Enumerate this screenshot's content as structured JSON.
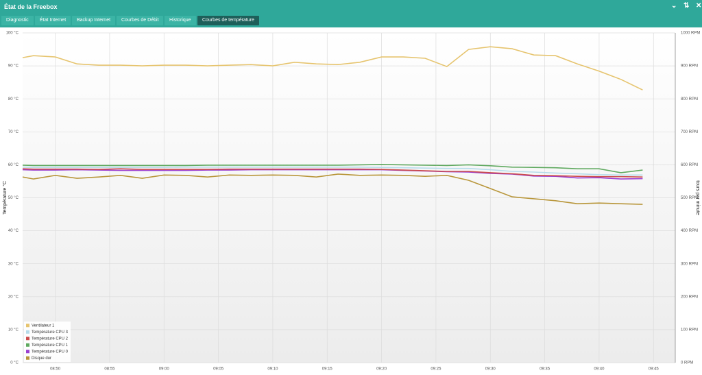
{
  "window": {
    "title": "État de la Freebox",
    "tabs": [
      "Diagnostic",
      "État Internet",
      "Backup Internet",
      "Courbes de Débit",
      "Historique",
      "Courbes de température"
    ],
    "active_tab": 5
  },
  "chart_data": {
    "type": "line",
    "y_label": "Température °C",
    "y2_label": "tours par minute",
    "x": [
      "08:47",
      "08:48",
      "08:50",
      "08:52",
      "08:54",
      "08:56",
      "08:58",
      "09:00",
      "09:02",
      "09:04",
      "09:06",
      "09:08",
      "09:10",
      "09:12",
      "09:14",
      "09:16",
      "09:18",
      "09:20",
      "09:22",
      "09:24",
      "09:26",
      "09:28",
      "09:30",
      "09:32",
      "09:34",
      "09:36",
      "09:38",
      "09:40",
      "09:42",
      "09:44"
    ],
    "xlim": [
      "08:47",
      "09:47"
    ],
    "xticks": [
      "08:50",
      "08:55",
      "09:00",
      "09:05",
      "09:10",
      "09:15",
      "09:20",
      "09:25",
      "09:30",
      "09:35",
      "09:40",
      "09:45"
    ],
    "ylim": [
      0,
      100
    ],
    "yticks": [
      {
        "value": 0,
        "label": "0 °C"
      },
      {
        "value": 10,
        "label": "10 °C"
      },
      {
        "value": 20,
        "label": "20 °C"
      },
      {
        "value": 30,
        "label": "30 °C"
      },
      {
        "value": 40,
        "label": "40 °C"
      },
      {
        "value": 50,
        "label": "50 °C"
      },
      {
        "value": 60,
        "label": "60 °C"
      },
      {
        "value": 70,
        "label": "70 °C"
      },
      {
        "value": 80,
        "label": "80 °C"
      },
      {
        "value": 90,
        "label": "90 °C"
      },
      {
        "value": 100,
        "label": "100 °C"
      }
    ],
    "y2lim": [
      0,
      1000
    ],
    "y2ticks": [
      {
        "value": 0,
        "label": "0 RPM"
      },
      {
        "value": 100,
        "label": "100 RPM"
      },
      {
        "value": 200,
        "label": "200 RPM"
      },
      {
        "value": 300,
        "label": "300 RPM"
      },
      {
        "value": 400,
        "label": "400 RPM"
      },
      {
        "value": 500,
        "label": "500 RPM"
      },
      {
        "value": 600,
        "label": "600 RPM"
      },
      {
        "value": 700,
        "label": "700 RPM"
      },
      {
        "value": 800,
        "label": "800 RPM"
      },
      {
        "value": 900,
        "label": "900 RPM"
      },
      {
        "value": 1000,
        "label": "1000 RPM"
      }
    ],
    "grid": true,
    "legend": "bottom-left",
    "series": [
      {
        "name": "Ventilateur 1",
        "color": "#e6c46e",
        "axis": "y2",
        "values": [
          925,
          931,
          927,
          906,
          902,
          902,
          900,
          902,
          902,
          900,
          902,
          904,
          900,
          911,
          906,
          904,
          911,
          927,
          927,
          923,
          898,
          950,
          958,
          952,
          933,
          931,
          906,
          884,
          859,
          827
        ]
      },
      {
        "name": "Température CPU 3",
        "color": "#b6dcea",
        "values": [
          59.3,
          59.2,
          59.2,
          59.2,
          59.2,
          59.2,
          59.2,
          59.2,
          59.3,
          59.3,
          59.3,
          59.3,
          59.3,
          59.3,
          59.3,
          59.3,
          59.3,
          59.2,
          59.1,
          59.0,
          58.9,
          58.9,
          58.5,
          58.0,
          57.8,
          57.5,
          57.3,
          57.0,
          56.9,
          56.9
        ]
      },
      {
        "name": "Température CPU 2",
        "color": "#cc4c4c",
        "values": [
          58.8,
          58.7,
          58.7,
          58.7,
          58.6,
          58.8,
          58.6,
          58.6,
          58.6,
          58.6,
          58.7,
          58.7,
          58.7,
          58.7,
          58.7,
          58.7,
          58.7,
          58.6,
          58.4,
          58.2,
          58.0,
          58.0,
          57.6,
          57.3,
          56.8,
          56.7,
          56.5,
          56.4,
          56.4,
          56.3
        ]
      },
      {
        "name": "Température CPU 1",
        "color": "#5fa95f",
        "values": [
          59.9,
          59.8,
          59.8,
          59.8,
          59.8,
          59.8,
          59.8,
          59.8,
          59.8,
          59.9,
          59.9,
          59.9,
          59.9,
          59.9,
          59.9,
          59.9,
          60.0,
          60.1,
          60.0,
          59.9,
          59.8,
          60.0,
          59.7,
          59.3,
          59.2,
          59.1,
          58.8,
          58.8,
          57.6,
          58.4
        ]
      },
      {
        "name": "Température CPU 0",
        "color": "#9b3fd0",
        "values": [
          58.5,
          58.4,
          58.4,
          58.5,
          58.4,
          58.3,
          58.3,
          58.3,
          58.3,
          58.4,
          58.4,
          58.5,
          58.5,
          58.5,
          58.5,
          58.5,
          58.5,
          58.5,
          58.3,
          58.1,
          57.9,
          57.8,
          57.4,
          57.2,
          56.6,
          56.5,
          56.0,
          56.1,
          55.7,
          55.8
        ]
      },
      {
        "name": "Disque dur",
        "color": "#b8963a",
        "values": [
          56.3,
          55.7,
          56.8,
          55.9,
          56.3,
          56.8,
          55.9,
          56.9,
          56.8,
          56.3,
          56.9,
          56.8,
          56.9,
          56.8,
          56.3,
          57.2,
          56.8,
          56.9,
          56.8,
          56.5,
          56.8,
          55.3,
          52.8,
          50.3,
          49.7,
          49.1,
          48.2,
          48.4,
          48.2,
          48.0
        ]
      }
    ]
  }
}
